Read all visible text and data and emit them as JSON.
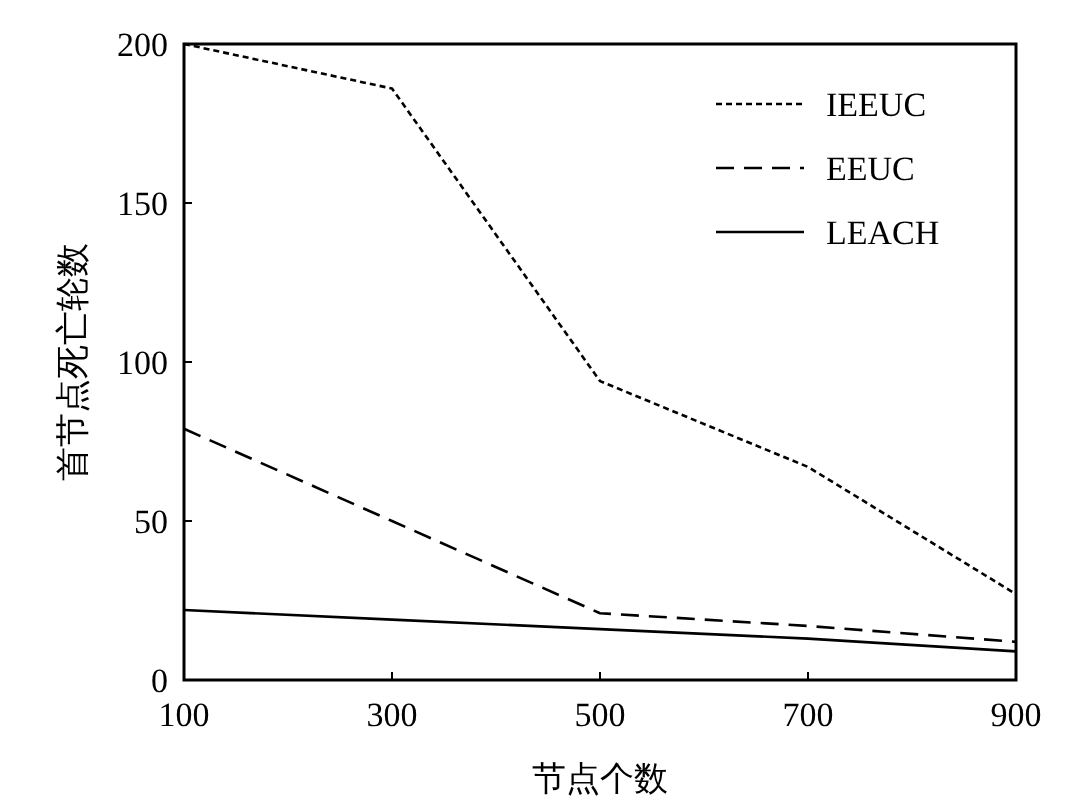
{
  "chart_data": {
    "type": "line",
    "xlabel": "节点个数",
    "ylabel": "首节点死亡轮数",
    "x": [
      100,
      300,
      500,
      700,
      900
    ],
    "series": [
      {
        "name": "IEEUC",
        "color": "#000000",
        "line_style": "dotted",
        "values": [
          200,
          186,
          94,
          67,
          27
        ]
      },
      {
        "name": "EEUC",
        "color": "#000000",
        "line_style": "dashed",
        "values": [
          79,
          50,
          21,
          17,
          12
        ]
      },
      {
        "name": "LEACH",
        "color": "#000000",
        "line_style": "solid",
        "values": [
          22,
          19,
          16,
          13,
          9
        ]
      }
    ],
    "xlim": [
      100,
      900
    ],
    "xticks": [
      100,
      300,
      500,
      700,
      900
    ],
    "ylim": [
      0,
      200
    ],
    "yticks": [
      0,
      50,
      100,
      150,
      200
    ],
    "grid": false,
    "legend": "top right",
    "marker": "none"
  }
}
